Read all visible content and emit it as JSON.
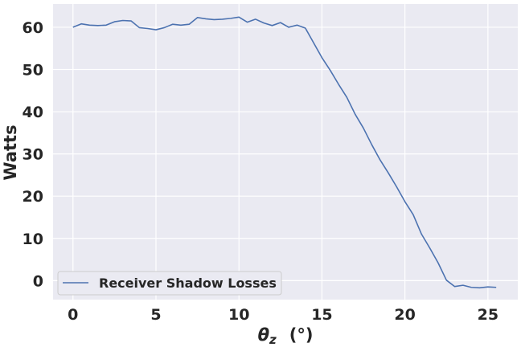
{
  "chart_data": {
    "type": "line",
    "title": "",
    "xlabel_symbol": "θ",
    "xlabel_subscript": "z",
    "xlabel_unit": "(°)",
    "ylabel": "Watts",
    "xlim": [
      -1.2,
      26.8
    ],
    "ylim": [
      -4.5,
      65.5
    ],
    "xticks": [
      0,
      5,
      10,
      15,
      20,
      25
    ],
    "yticks": [
      0,
      10,
      20,
      30,
      40,
      50,
      60
    ],
    "grid": true,
    "legend_position": "lower-left",
    "series": [
      {
        "name": "Receiver Shadow Losses",
        "color": "#4c72b0",
        "x": [
          0,
          0.5,
          1,
          1.5,
          2,
          2.5,
          3,
          3.5,
          4,
          4.5,
          5,
          5.5,
          6,
          6.5,
          7,
          7.5,
          8,
          8.5,
          9,
          9.5,
          10,
          10.5,
          11,
          11.5,
          12,
          12.5,
          13,
          13.5,
          14,
          14.5,
          15,
          15.5,
          16,
          16.5,
          17,
          17.5,
          18,
          18.5,
          19,
          19.5,
          20,
          20.5,
          21,
          21.5,
          22,
          22.5,
          23,
          23.5,
          24,
          24.5,
          25,
          25.5
        ],
        "y": [
          60.0,
          60.8,
          60.5,
          60.4,
          60.5,
          61.3,
          61.6,
          61.5,
          59.9,
          59.7,
          59.4,
          59.9,
          60.7,
          60.5,
          60.7,
          62.3,
          62.0,
          61.8,
          61.9,
          62.1,
          62.4,
          61.2,
          61.9,
          61.0,
          60.4,
          61.1,
          60.0,
          60.5,
          59.8,
          56.3,
          52.8,
          49.8,
          46.5,
          43.4,
          39.4,
          36.1,
          32.2,
          28.6,
          25.5,
          22.2,
          18.7,
          15.6,
          11.0,
          7.7,
          4.2,
          0.1,
          -1.4,
          -1.1,
          -1.6,
          -1.7,
          -1.5,
          -1.6
        ]
      }
    ]
  }
}
